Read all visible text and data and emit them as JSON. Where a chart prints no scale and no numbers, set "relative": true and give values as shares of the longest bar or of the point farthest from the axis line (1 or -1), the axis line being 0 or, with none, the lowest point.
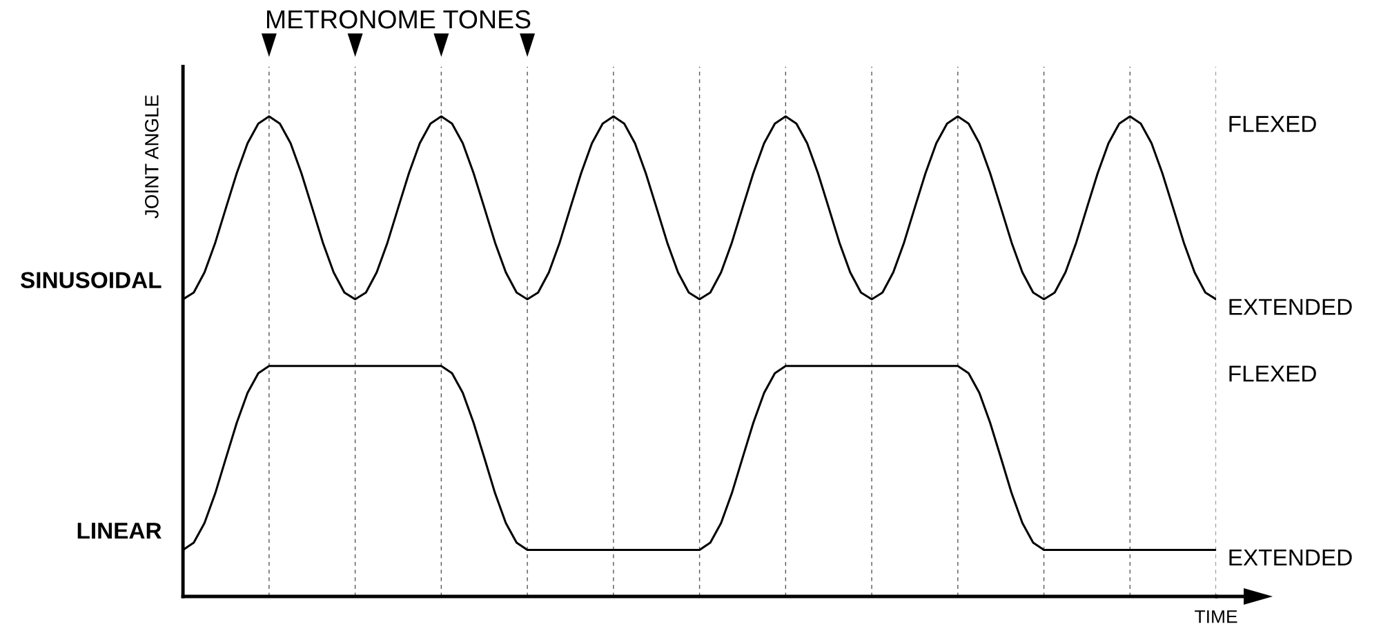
{
  "chart_data": {
    "type": "line",
    "relative": true,
    "title": "METRONOME TONES",
    "xlabel": "TIME",
    "ylabel": "JOINT ANGLE",
    "grid": "x",
    "line_style": "solid",
    "categories": [
      null,
      null,
      null,
      null,
      null,
      null,
      null,
      null,
      null,
      null,
      null,
      null,
      null,
      null,
      null,
      null,
      null,
      null,
      null,
      null,
      null,
      null,
      null,
      null,
      null,
      null,
      null,
      null,
      null,
      null,
      null,
      null,
      null,
      null,
      null,
      null,
      null,
      null,
      null,
      null,
      null,
      null,
      null,
      null,
      null,
      null,
      null,
      null,
      null,
      null,
      null,
      null,
      null,
      null,
      null,
      null,
      null,
      null,
      null,
      null,
      null,
      null,
      null,
      null,
      null,
      null,
      null,
      null,
      null,
      null,
      null,
      null,
      null,
      null,
      null,
      null,
      null,
      null,
      null,
      null,
      null,
      null,
      null,
      null,
      null,
      null,
      null,
      null,
      null,
      null,
      null,
      null,
      null,
      null,
      null,
      null,
      null
    ],
    "series": [
      {
        "name": "SINUSOIDAL",
        "color": "#000000",
        "values": [
          0.619,
          0.633,
          0.675,
          0.737,
          0.81,
          0.882,
          0.944,
          0.985,
          1,
          0.985,
          0.944,
          0.882,
          0.81,
          0.737,
          0.675,
          0.633,
          0.619,
          0.633,
          0.675,
          0.737,
          0.81,
          0.882,
          0.944,
          0.985,
          1,
          0.985,
          0.944,
          0.882,
          0.81,
          0.737,
          0.675,
          0.633,
          0.619,
          0.633,
          0.675,
          0.737,
          0.81,
          0.882,
          0.944,
          0.985,
          1,
          0.985,
          0.944,
          0.882,
          0.81,
          0.737,
          0.675,
          0.633,
          0.619,
          0.633,
          0.675,
          0.737,
          0.81,
          0.882,
          0.944,
          0.985,
          1,
          0.985,
          0.944,
          0.882,
          0.81,
          0.737,
          0.675,
          0.633,
          0.619,
          0.633,
          0.675,
          0.737,
          0.81,
          0.882,
          0.944,
          0.985,
          1,
          0.985,
          0.944,
          0.882,
          0.81,
          0.737,
          0.675,
          0.633,
          0.619,
          0.633,
          0.675,
          0.737,
          0.81,
          0.882,
          0.944,
          0.985,
          1,
          0.985,
          0.944,
          0.882,
          0.81,
          0.737,
          0.675,
          0.633,
          0.619
        ]
      },
      {
        "name": "LINEAR",
        "color": "#000000",
        "values": [
          0.097,
          0.112,
          0.153,
          0.215,
          0.289,
          0.362,
          0.424,
          0.465,
          0.48,
          0.48,
          0.48,
          0.48,
          0.48,
          0.48,
          0.48,
          0.48,
          0.48,
          0.48,
          0.48,
          0.48,
          0.48,
          0.48,
          0.48,
          0.48,
          0.48,
          0.465,
          0.424,
          0.362,
          0.289,
          0.215,
          0.153,
          0.112,
          0.097,
          0.097,
          0.097,
          0.097,
          0.097,
          0.097,
          0.097,
          0.097,
          0.097,
          0.097,
          0.097,
          0.097,
          0.097,
          0.097,
          0.097,
          0.097,
          0.097,
          0.112,
          0.153,
          0.215,
          0.289,
          0.362,
          0.424,
          0.465,
          0.48,
          0.48,
          0.48,
          0.48,
          0.48,
          0.48,
          0.48,
          0.48,
          0.48,
          0.48,
          0.48,
          0.48,
          0.48,
          0.48,
          0.48,
          0.48,
          0.48,
          0.465,
          0.424,
          0.362,
          0.289,
          0.215,
          0.153,
          0.112,
          0.097,
          0.097,
          0.097,
          0.097,
          0.097,
          0.097,
          0.097,
          0.097,
          0.097,
          0.097,
          0.097,
          0.097,
          0.097,
          0.097,
          0.097,
          0.097,
          0.097
        ]
      }
    ],
    "annotations": [
      "FLEXED",
      "EXTENDED",
      "FLEXED",
      "EXTENDED"
    ]
  }
}
